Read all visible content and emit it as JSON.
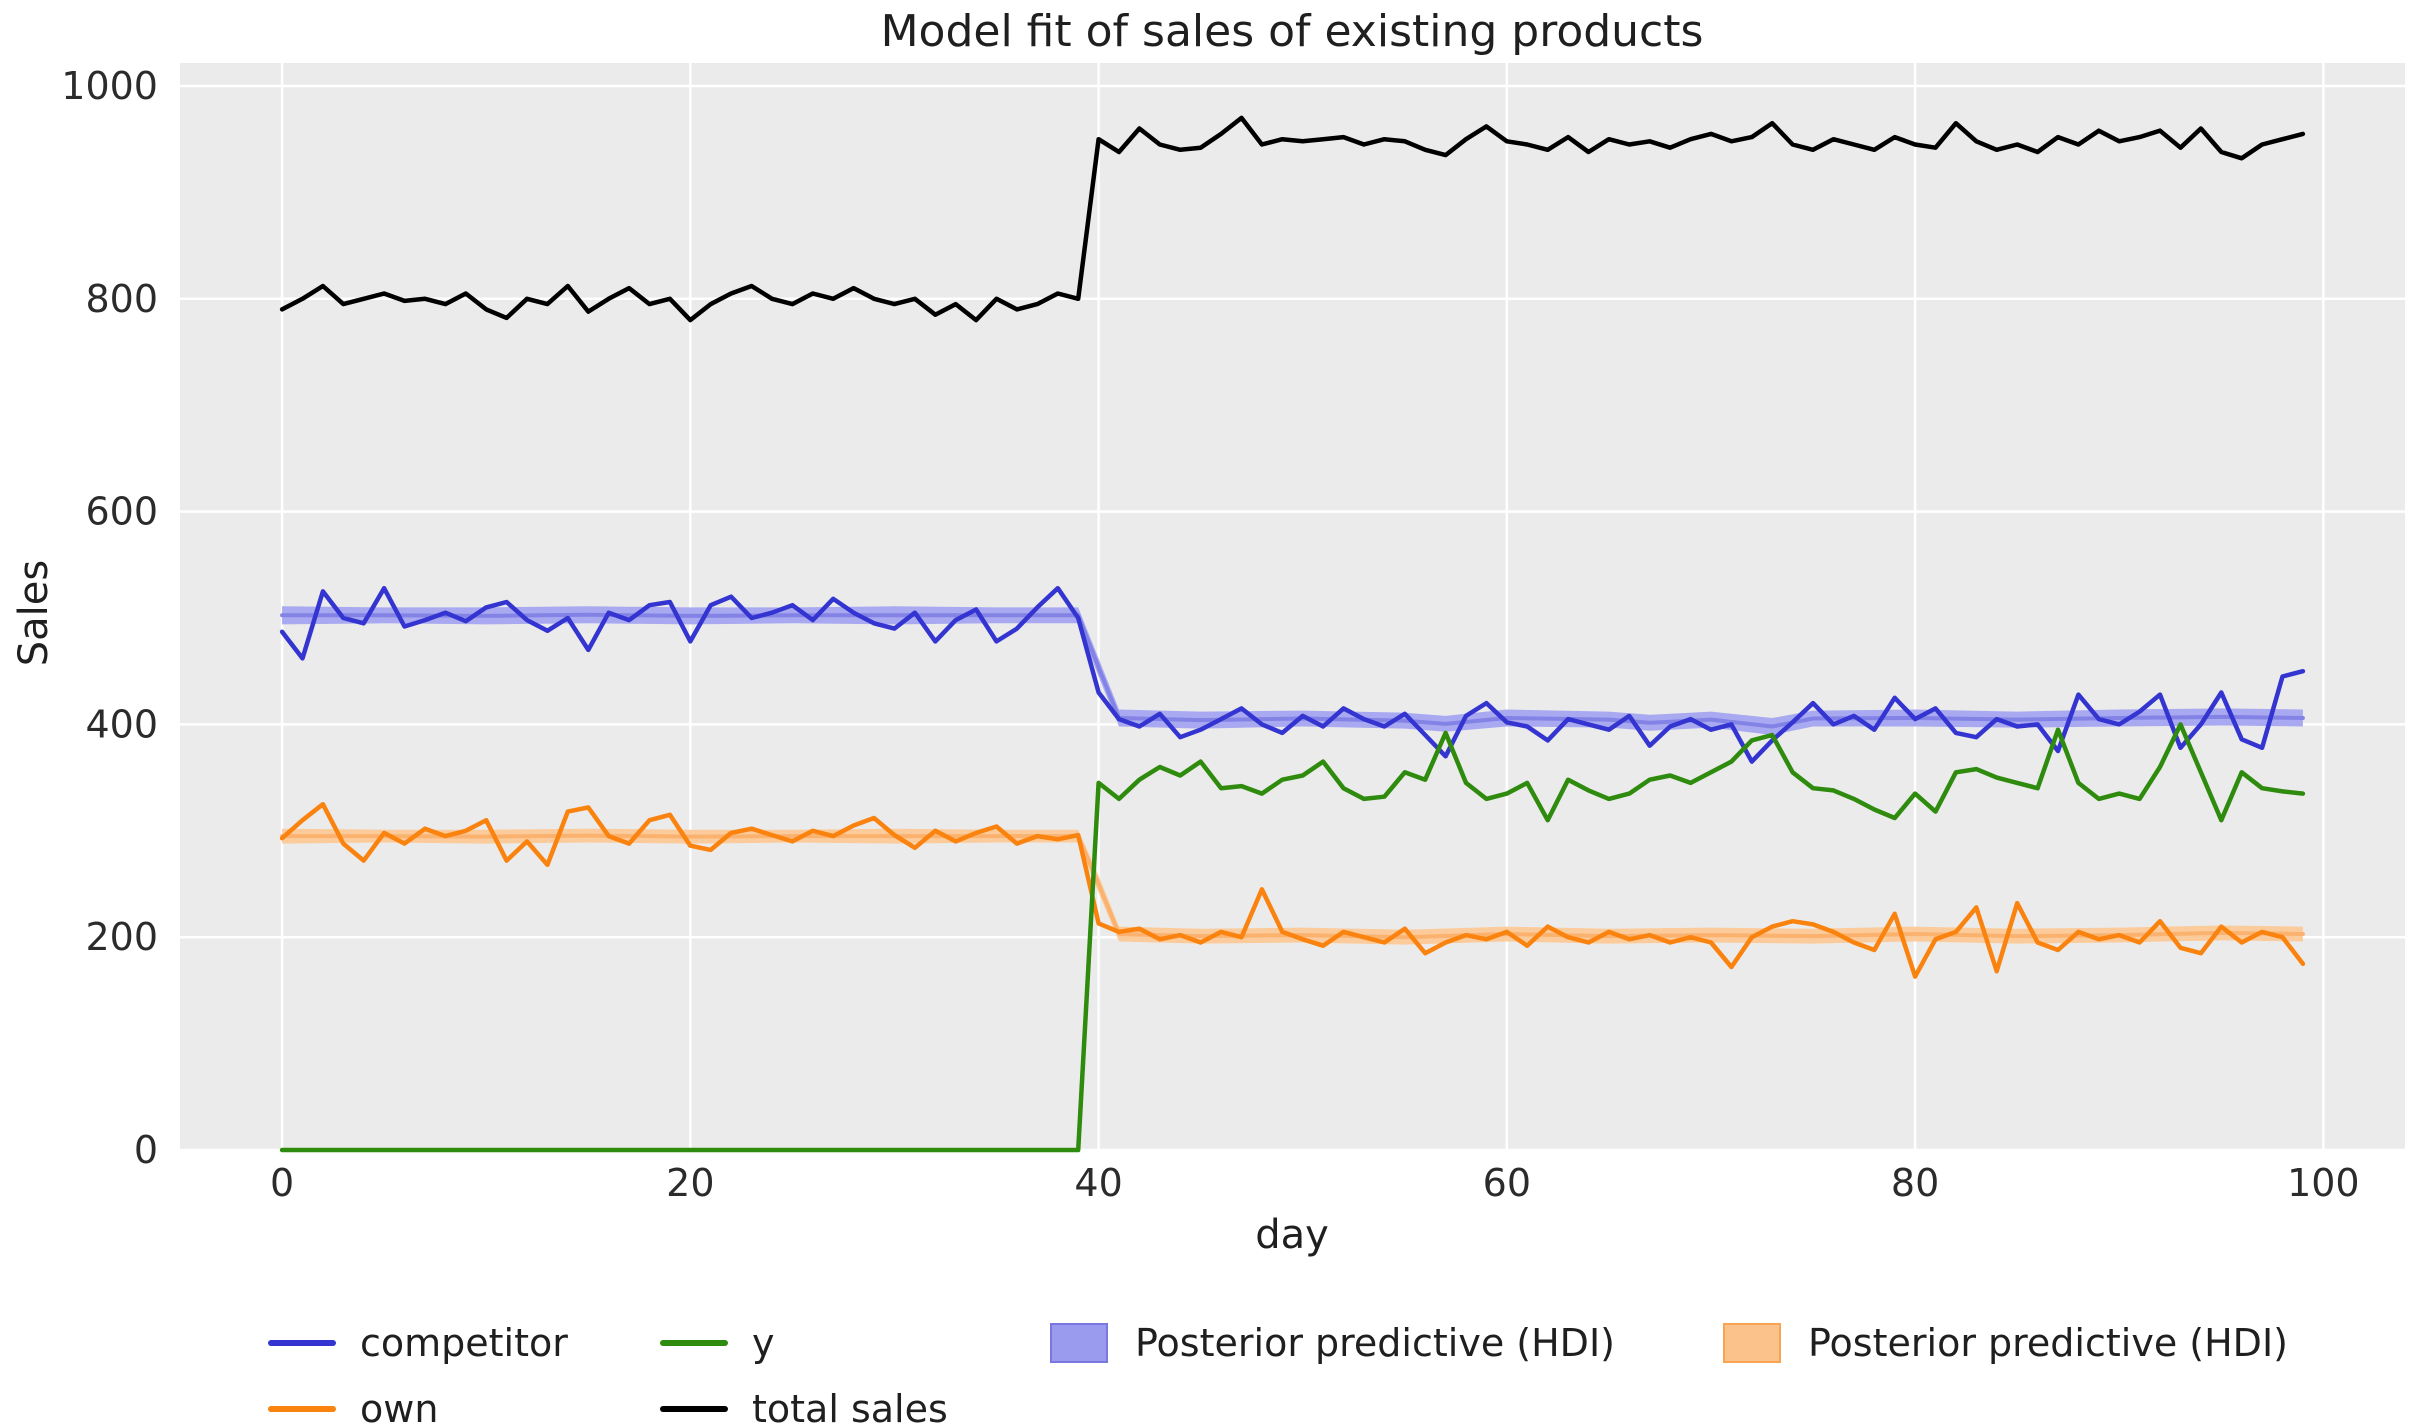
{
  "chart_data": {
    "type": "line",
    "title": "Model fit of sales of existing products",
    "xlabel": "day",
    "ylabel": "Sales",
    "x_ticks": [
      0,
      20,
      40,
      60,
      80,
      100
    ],
    "y_ticks": [
      0,
      200,
      400,
      600,
      800,
      1000
    ],
    "xlim": [
      -5,
      104
    ],
    "ylim": [
      0,
      1021.6
    ],
    "grid": true,
    "plot_bg_color": "#ebebeb",
    "grid_color": "#ffffff",
    "x_start": 0,
    "x_step": 1,
    "series": [
      {
        "name": "competitor",
        "color": "#3434d1",
        "values": [
          487,
          462,
          525,
          500,
          495,
          528,
          492,
          498,
          505,
          497,
          510,
          515,
          498,
          488,
          500,
          470,
          505,
          498,
          512,
          515,
          478,
          512,
          520,
          500,
          505,
          512,
          498,
          518,
          505,
          495,
          490,
          505,
          478,
          498,
          508,
          478,
          490,
          510,
          528,
          500,
          430,
          405,
          398,
          410,
          388,
          395,
          405,
          415,
          400,
          392,
          408,
          398,
          415,
          405,
          398,
          410,
          390,
          370,
          408,
          420,
          402,
          398,
          385,
          405,
          400,
          395,
          408,
          380,
          398,
          405,
          395,
          400,
          365,
          385,
          402,
          420,
          400,
          408,
          395,
          425,
          405,
          415,
          392,
          388,
          405,
          398,
          400,
          375,
          428,
          405,
          400,
          412,
          428,
          378,
          400,
          430,
          386,
          378,
          445,
          450
        ]
      },
      {
        "name": "own",
        "color": "#f9830e",
        "values": [
          293,
          310,
          325,
          288,
          272,
          298,
          288,
          302,
          295,
          300,
          310,
          272,
          290,
          268,
          318,
          322,
          295,
          288,
          310,
          315,
          286,
          282,
          298,
          302,
          296,
          290,
          300,
          295,
          305,
          312,
          296,
          284,
          300,
          290,
          298,
          304,
          288,
          295,
          292,
          296,
          213,
          205,
          208,
          198,
          202,
          195,
          205,
          200,
          245,
          205,
          198,
          192,
          205,
          200,
          195,
          208,
          185,
          195,
          202,
          198,
          205,
          192,
          210,
          200,
          195,
          205,
          198,
          202,
          195,
          200,
          195,
          172,
          200,
          210,
          215,
          212,
          205,
          195,
          188,
          222,
          163,
          198,
          205,
          228,
          168,
          232,
          195,
          188,
          205,
          198,
          202,
          195,
          215,
          190,
          185,
          210,
          195,
          205,
          200,
          175
        ]
      },
      {
        "name": "y",
        "color": "#2f8b0e",
        "values": [
          0,
          0,
          0,
          0,
          0,
          0,
          0,
          0,
          0,
          0,
          0,
          0,
          0,
          0,
          0,
          0,
          0,
          0,
          0,
          0,
          0,
          0,
          0,
          0,
          0,
          0,
          0,
          0,
          0,
          0,
          0,
          0,
          0,
          0,
          0,
          0,
          0,
          0,
          0,
          0,
          345,
          330,
          348,
          360,
          352,
          365,
          340,
          342,
          335,
          348,
          352,
          365,
          340,
          330,
          332,
          355,
          348,
          392,
          345,
          330,
          335,
          345,
          310,
          348,
          338,
          330,
          335,
          348,
          352,
          345,
          355,
          365,
          385,
          390,
          355,
          340,
          338,
          330,
          320,
          312,
          335,
          318,
          355,
          358,
          350,
          345,
          340,
          395,
          345,
          330,
          335,
          330,
          360,
          400,
          355,
          310,
          355,
          340,
          337,
          335
        ]
      },
      {
        "name": "total sales",
        "color": "#000000",
        "values": [
          790,
          800,
          812,
          795,
          800,
          805,
          798,
          800,
          795,
          805,
          790,
          782,
          800,
          795,
          812,
          788,
          800,
          810,
          795,
          800,
          780,
          795,
          805,
          812,
          800,
          795,
          805,
          800,
          810,
          800,
          795,
          800,
          785,
          795,
          780,
          800,
          790,
          795,
          805,
          800,
          950,
          938,
          960,
          945,
          940,
          942,
          955,
          970,
          945,
          950,
          948,
          950,
          952,
          945,
          950,
          948,
          940,
          935,
          950,
          962,
          948,
          945,
          940,
          952,
          938,
          950,
          945,
          948,
          942,
          950,
          955,
          948,
          952,
          965,
          945,
          940,
          950,
          945,
          940,
          952,
          945,
          942,
          965,
          948,
          940,
          945,
          938,
          952,
          945,
          958,
          948,
          952,
          958,
          942,
          960,
          938,
          932,
          945,
          950,
          955
        ]
      }
    ],
    "hdi_bands": [
      {
        "name": "Posterior predictive (HDI)",
        "applies_to": "competitor",
        "fill_color": "#a9a9f1",
        "median_color": "#8383e6",
        "x": [
          0,
          5,
          10,
          15,
          20,
          25,
          30,
          35,
          39,
          40,
          41,
          45,
          50,
          55,
          57,
          60,
          65,
          67,
          70,
          73,
          75,
          80,
          85,
          90,
          95,
          99
        ],
        "lower": [
          494,
          495,
          494,
          495,
          494,
          495,
          494,
          495,
          495,
          445,
          398,
          396,
          398,
          396,
          393,
          398,
          397,
          394,
          397,
          390,
          398,
          398,
          397,
          398,
          399,
          398
        ],
        "upper": [
          511,
          510,
          510,
          511,
          510,
          510,
          511,
          510,
          510,
          462,
          414,
          412,
          413,
          411,
          408,
          414,
          412,
          409,
          412,
          406,
          413,
          414,
          412,
          414,
          415,
          414
        ]
      },
      {
        "name": "Posterior predictive (HDI)",
        "applies_to": "own",
        "fill_color": "#fccb9b",
        "median_color": "#fab26e",
        "x": [
          0,
          5,
          10,
          15,
          20,
          25,
          30,
          35,
          39,
          40,
          41,
          45,
          50,
          55,
          60,
          65,
          70,
          75,
          80,
          85,
          90,
          95,
          99
        ],
        "lower": [
          288,
          289,
          288,
          289,
          288,
          289,
          288,
          289,
          289,
          242,
          196,
          194,
          195,
          193,
          196,
          194,
          195,
          194,
          196,
          194,
          195,
          197,
          196
        ],
        "upper": [
          302,
          301,
          301,
          302,
          301,
          301,
          302,
          301,
          301,
          258,
          210,
          208,
          209,
          207,
          210,
          208,
          209,
          208,
          210,
          208,
          209,
          211,
          210
        ]
      }
    ],
    "legend": {
      "position": "below-axes",
      "items": [
        {
          "label": "competitor",
          "swatch": "line",
          "color": "#3434d1"
        },
        {
          "label": "own",
          "swatch": "line",
          "color": "#f9830e"
        },
        {
          "label": "y",
          "swatch": "line",
          "color": "#2f8b0e"
        },
        {
          "label": "total sales",
          "swatch": "line",
          "color": "#000000"
        },
        {
          "label": "Posterior predictive (HDI)",
          "swatch": "patch",
          "color": "#9a9aee",
          "border": "#7878de"
        },
        {
          "label": "Posterior predictive (HDI)",
          "swatch": "patch",
          "color": "#fbc28b",
          "border": "#f9a355"
        }
      ]
    }
  }
}
